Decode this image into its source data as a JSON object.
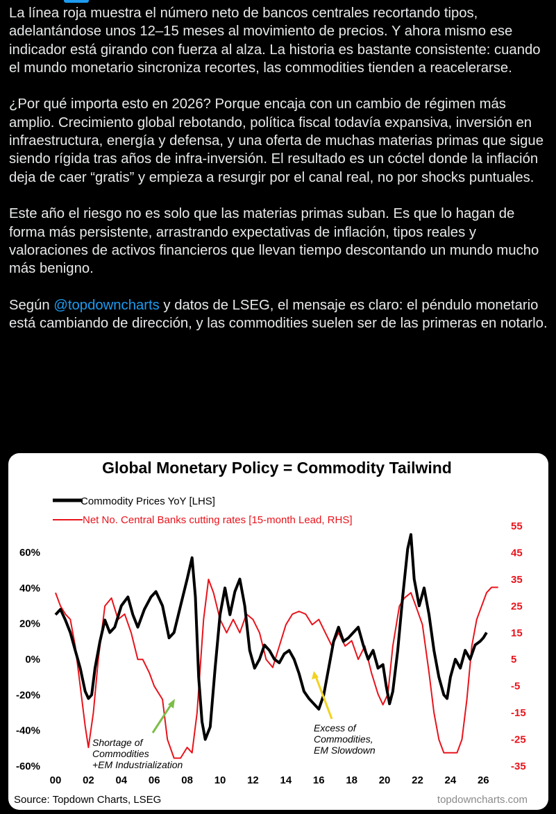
{
  "tweet": {
    "p1": "La línea roja muestra el número neto de bancos centrales recortando tipos, adelantándose unos 12–15 meses al movimiento de precios. Y ahora mismo ese indicador está girando con fuerza al alza. La historia es bastante consistente: cuando el mundo monetario sincroniza recortes, las commodities tienden a reacelerarse.",
    "p2": "¿Por qué importa esto en 2026? Porque encaja con un cambio de régimen más amplio. Crecimiento global rebotando, política fiscal todavía expansiva, inversión en infraestructura, energía y defensa, y una oferta de muchas materias primas que sigue siendo rígida tras años de infra-inversión. El resultado es un cóctel donde la inflación deja de caer “gratis” y empieza a resurgir por el canal real, no por shocks puntuales.",
    "p3": "Este año el riesgo no es solo que las materias primas suban. Es que lo hagan de forma más persistente, arrastrando expectativas de inflación, tipos reales y valoraciones de activos financieros que llevan tiempo descontando un mundo mucho más benigno.",
    "p4_before": "Según ",
    "p4_mention": "@topdowncharts",
    "p4_after": " y datos de LSEG, el mensaje es claro: el péndulo monetario está cambiando de dirección, y las commodities suelen ser de las primeras en notarlo."
  },
  "colors": {
    "accent": "#1d9bf0",
    "commodity": "#000000",
    "banks": "#e8131b",
    "arrow_left": "#7cbd4a",
    "arrow_right": "#f3d21d"
  },
  "chart_data": {
    "type": "line",
    "title": "Global Monetary Policy = Commodity Tailwind",
    "source": "Source: Topdown Charts, LSEG",
    "watermark": "topdowncharts.com",
    "x_ticks": [
      "00",
      "02",
      "04",
      "06",
      "08",
      "10",
      "12",
      "14",
      "16",
      "18",
      "20",
      "22",
      "24",
      "26"
    ],
    "x_range": [
      2000,
      2027
    ],
    "y_left_ticks": [
      "60%",
      "40%",
      "20%",
      "0%",
      "-20%",
      "-40%",
      "-60%"
    ],
    "y_left_range": [
      -60,
      60
    ],
    "y_right_ticks": [
      "55",
      "45",
      "35",
      "25",
      "15",
      "5",
      "-5",
      "-15",
      "-25",
      "-35"
    ],
    "y_right_range": [
      -35,
      55
    ],
    "legend_placement": "top-left",
    "annotations": [
      {
        "lines": [
          "Shortage of",
          "Commodities",
          "+EM Industrialization"
        ],
        "arrow_color": "green"
      },
      {
        "lines": [
          "Excess of",
          "Commodities,",
          "EM Slowdown"
        ],
        "arrow_color": "yellow"
      }
    ],
    "series": [
      {
        "name": "Commodity Prices YoY [LHS]",
        "axis": "left",
        "points": [
          [
            2000.0,
            25
          ],
          [
            2000.3,
            28
          ],
          [
            2000.6,
            22
          ],
          [
            2000.9,
            15
          ],
          [
            2001.2,
            5
          ],
          [
            2001.5,
            -5
          ],
          [
            2001.8,
            -18
          ],
          [
            2002.0,
            -22
          ],
          [
            2002.2,
            -20
          ],
          [
            2002.4,
            -5
          ],
          [
            2002.7,
            10
          ],
          [
            2003.0,
            22
          ],
          [
            2003.3,
            15
          ],
          [
            2003.6,
            18
          ],
          [
            2004.0,
            30
          ],
          [
            2004.4,
            35
          ],
          [
            2004.7,
            25
          ],
          [
            2005.0,
            18
          ],
          [
            2005.4,
            28
          ],
          [
            2005.8,
            35
          ],
          [
            2006.1,
            38
          ],
          [
            2006.5,
            30
          ],
          [
            2006.9,
            12
          ],
          [
            2007.2,
            15
          ],
          [
            2007.6,
            30
          ],
          [
            2008.0,
            45
          ],
          [
            2008.3,
            57
          ],
          [
            2008.5,
            35
          ],
          [
            2008.7,
            -10
          ],
          [
            2008.9,
            -35
          ],
          [
            2009.1,
            -45
          ],
          [
            2009.4,
            -38
          ],
          [
            2009.7,
            -5
          ],
          [
            2010.0,
            25
          ],
          [
            2010.3,
            40
          ],
          [
            2010.6,
            25
          ],
          [
            2010.9,
            38
          ],
          [
            2011.2,
            45
          ],
          [
            2011.5,
            30
          ],
          [
            2011.8,
            5
          ],
          [
            2012.1,
            -5
          ],
          [
            2012.4,
            0
          ],
          [
            2012.7,
            8
          ],
          [
            2013.0,
            5
          ],
          [
            2013.3,
            0
          ],
          [
            2013.6,
            -2
          ],
          [
            2013.9,
            3
          ],
          [
            2014.2,
            5
          ],
          [
            2014.5,
            0
          ],
          [
            2014.8,
            -8
          ],
          [
            2015.1,
            -18
          ],
          [
            2015.4,
            -22
          ],
          [
            2015.7,
            -25
          ],
          [
            2016.0,
            -28
          ],
          [
            2016.3,
            -20
          ],
          [
            2016.6,
            -5
          ],
          [
            2016.9,
            10
          ],
          [
            2017.2,
            18
          ],
          [
            2017.5,
            10
          ],
          [
            2017.8,
            12
          ],
          [
            2018.1,
            15
          ],
          [
            2018.4,
            18
          ],
          [
            2018.7,
            8
          ],
          [
            2019.0,
            0
          ],
          [
            2019.3,
            5
          ],
          [
            2019.6,
            -5
          ],
          [
            2019.9,
            -3
          ],
          [
            2020.1,
            -15
          ],
          [
            2020.3,
            -25
          ],
          [
            2020.5,
            -18
          ],
          [
            2020.8,
            5
          ],
          [
            2021.1,
            35
          ],
          [
            2021.4,
            62
          ],
          [
            2021.6,
            70
          ],
          [
            2021.8,
            45
          ],
          [
            2022.1,
            30
          ],
          [
            2022.4,
            40
          ],
          [
            2022.7,
            25
          ],
          [
            2023.0,
            5
          ],
          [
            2023.3,
            -10
          ],
          [
            2023.6,
            -20
          ],
          [
            2023.8,
            -22
          ],
          [
            2024.0,
            -10
          ],
          [
            2024.3,
            0
          ],
          [
            2024.6,
            -5
          ],
          [
            2024.9,
            5
          ],
          [
            2025.2,
            0
          ],
          [
            2025.5,
            8
          ],
          [
            2025.8,
            10
          ],
          [
            2026.0,
            12
          ],
          [
            2026.2,
            15
          ]
        ]
      },
      {
        "name": "Net No. Central Banks cutting rates [15-month Lead, RHS]",
        "axis": "right",
        "points": [
          [
            2000.0,
            30
          ],
          [
            2000.3,
            25
          ],
          [
            2000.6,
            22
          ],
          [
            2000.9,
            20
          ],
          [
            2001.2,
            10
          ],
          [
            2001.5,
            -5
          ],
          [
            2001.8,
            -20
          ],
          [
            2002.0,
            -28
          ],
          [
            2002.3,
            -15
          ],
          [
            2002.6,
            5
          ],
          [
            2003.0,
            25
          ],
          [
            2003.4,
            28
          ],
          [
            2003.8,
            20
          ],
          [
            2004.2,
            22
          ],
          [
            2004.6,
            15
          ],
          [
            2005.0,
            5
          ],
          [
            2005.3,
            5
          ],
          [
            2005.7,
            0
          ],
          [
            2006.0,
            -5
          ],
          [
            2006.5,
            -10
          ],
          [
            2006.8,
            -25
          ],
          [
            2007.2,
            -32
          ],
          [
            2007.6,
            -32
          ],
          [
            2008.0,
            -28
          ],
          [
            2008.3,
            -30
          ],
          [
            2008.6,
            -15
          ],
          [
            2009.0,
            20
          ],
          [
            2009.3,
            35
          ],
          [
            2009.6,
            30
          ],
          [
            2010.0,
            20
          ],
          [
            2010.4,
            15
          ],
          [
            2010.8,
            20
          ],
          [
            2011.2,
            15
          ],
          [
            2011.6,
            22
          ],
          [
            2012.0,
            20
          ],
          [
            2012.4,
            15
          ],
          [
            2012.8,
            5
          ],
          [
            2013.2,
            2
          ],
          [
            2013.6,
            10
          ],
          [
            2014.0,
            18
          ],
          [
            2014.4,
            22
          ],
          [
            2014.8,
            23
          ],
          [
            2015.2,
            22
          ],
          [
            2015.6,
            18
          ],
          [
            2016.0,
            20
          ],
          [
            2016.4,
            15
          ],
          [
            2016.8,
            10
          ],
          [
            2017.2,
            15
          ],
          [
            2017.6,
            10
          ],
          [
            2018.0,
            12
          ],
          [
            2018.4,
            5
          ],
          [
            2018.8,
            10
          ],
          [
            2019.2,
            0
          ],
          [
            2019.6,
            -8
          ],
          [
            2019.9,
            -12
          ],
          [
            2020.2,
            -8
          ],
          [
            2020.5,
            10
          ],
          [
            2020.9,
            25
          ],
          [
            2021.2,
            28
          ],
          [
            2021.6,
            30
          ],
          [
            2021.9,
            25
          ],
          [
            2022.3,
            18
          ],
          [
            2022.7,
            0
          ],
          [
            2023.0,
            -15
          ],
          [
            2023.3,
            -25
          ],
          [
            2023.6,
            -30
          ],
          [
            2024.0,
            -30
          ],
          [
            2024.4,
            -30
          ],
          [
            2024.7,
            -25
          ],
          [
            2025.0,
            -10
          ],
          [
            2025.3,
            10
          ],
          [
            2025.6,
            20
          ],
          [
            2025.9,
            25
          ],
          [
            2026.2,
            30
          ],
          [
            2026.5,
            32
          ],
          [
            2026.9,
            32
          ]
        ]
      }
    ]
  }
}
